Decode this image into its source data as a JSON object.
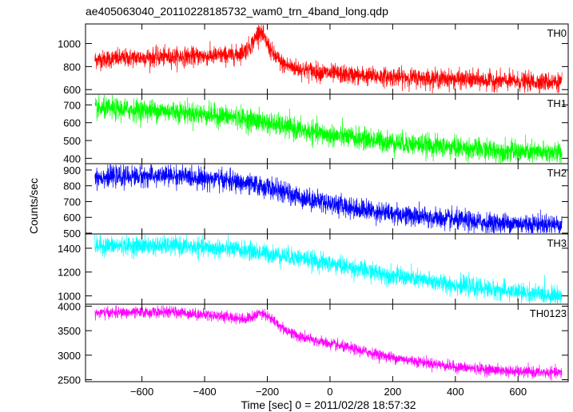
{
  "chart_data": {
    "type": "line",
    "title": "ae405063040_20110228185732_wam0_trn_4band_long.qdp",
    "xlabel": "Time [sec] 0 = 2011/02/28 18:57:32",
    "ylabel": "Counts/sec",
    "xlim": [
      -780,
      760
    ],
    "x_range": [
      -750,
      740
    ],
    "x_ticks": [
      -600,
      -400,
      -200,
      0,
      200,
      400,
      600
    ],
    "x_tick_labels": [
      "−600",
      "−400",
      "−200",
      "0",
      "200",
      "400",
      "600"
    ],
    "panels": [
      {
        "name": "TH0",
        "color": "#ff0000",
        "ylim": [
          560,
          1170
        ],
        "y_ticks": [
          600,
          800,
          1000
        ],
        "noise": 40,
        "trend": [
          [
            -750,
            860
          ],
          [
            -600,
            880
          ],
          [
            -400,
            890
          ],
          [
            -300,
            900
          ],
          [
            -270,
            940
          ],
          [
            -245,
            1010
          ],
          [
            -225,
            1120
          ],
          [
            -205,
            1020
          ],
          [
            -180,
            900
          ],
          [
            -150,
            820
          ],
          [
            -100,
            780
          ],
          [
            0,
            740
          ],
          [
            100,
            720
          ],
          [
            200,
            710
          ],
          [
            400,
            690
          ],
          [
            600,
            670
          ],
          [
            740,
            665
          ]
        ]
      },
      {
        "name": "TH1",
        "color": "#00ff00",
        "ylim": [
          370,
          760
        ],
        "y_ticks": [
          400,
          500,
          600,
          700
        ],
        "noise": 30,
        "trend": [
          [
            -750,
            680
          ],
          [
            -500,
            665
          ],
          [
            -300,
            630
          ],
          [
            -200,
            600
          ],
          [
            -100,
            560
          ],
          [
            0,
            530
          ],
          [
            200,
            490
          ],
          [
            400,
            460
          ],
          [
            600,
            435
          ],
          [
            740,
            430
          ]
        ]
      },
      {
        "name": "TH2",
        "color": "#0000ff",
        "ylim": [
          495,
          940
        ],
        "y_ticks": [
          500,
          600,
          700,
          800,
          900
        ],
        "noise": 32,
        "trend": [
          [
            -750,
            855
          ],
          [
            -500,
            865
          ],
          [
            -350,
            840
          ],
          [
            -200,
            790
          ],
          [
            -100,
            730
          ],
          [
            0,
            690
          ],
          [
            100,
            650
          ],
          [
            300,
            600
          ],
          [
            500,
            565
          ],
          [
            740,
            555
          ]
        ]
      },
      {
        "name": "TH3",
        "color": "#00ffff",
        "ylim": [
          930,
          1520
        ],
        "y_ticks": [
          1000,
          1200,
          1400
        ],
        "noise": 38,
        "trend": [
          [
            -750,
            1420
          ],
          [
            -500,
            1420
          ],
          [
            -300,
            1390
          ],
          [
            -100,
            1320
          ],
          [
            0,
            1270
          ],
          [
            200,
            1170
          ],
          [
            400,
            1090
          ],
          [
            600,
            1030
          ],
          [
            740,
            1000
          ]
        ]
      },
      {
        "name": "TH0123",
        "color": "#ff00ff",
        "ylim": [
          2460,
          4040
        ],
        "y_ticks": [
          2500,
          3000,
          3500,
          4000
        ],
        "noise": 55,
        "trend": [
          [
            -750,
            3860
          ],
          [
            -500,
            3880
          ],
          [
            -350,
            3800
          ],
          [
            -270,
            3740
          ],
          [
            -240,
            3790
          ],
          [
            -220,
            3890
          ],
          [
            -200,
            3800
          ],
          [
            -150,
            3550
          ],
          [
            -100,
            3380
          ],
          [
            0,
            3230
          ],
          [
            200,
            2950
          ],
          [
            400,
            2760
          ],
          [
            600,
            2660
          ],
          [
            740,
            2640
          ]
        ]
      }
    ]
  }
}
